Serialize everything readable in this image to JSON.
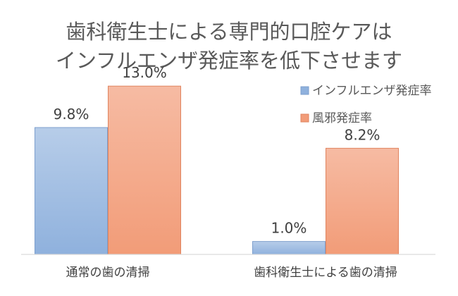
{
  "chart_data": {
    "type": "bar",
    "title": [
      "歯科衛生士による専門的口腔ケアは",
      "インフルエンザ発症率を低下させます"
    ],
    "categories": [
      "通常の歯の清掃",
      "歯科衛生士による歯の清掃"
    ],
    "series": [
      {
        "name": "インフルエンザ発症率",
        "values": [
          9.8,
          1.0
        ],
        "labels": [
          "9.8%",
          "1.0%"
        ],
        "color_top": "#b7cde9",
        "color_bottom": "#8fb1dd",
        "edge": "#7d9fcd"
      },
      {
        "name": "風邪発症率",
        "values": [
          13.0,
          8.2
        ],
        "labels": [
          "13.0%",
          "8.2%"
        ],
        "color_top": "#f6bba3",
        "color_bottom": "#f29c78",
        "edge": "#e0845f"
      }
    ],
    "ylim": [
      0,
      13.5
    ],
    "grid": false,
    "legend_position": "right"
  }
}
